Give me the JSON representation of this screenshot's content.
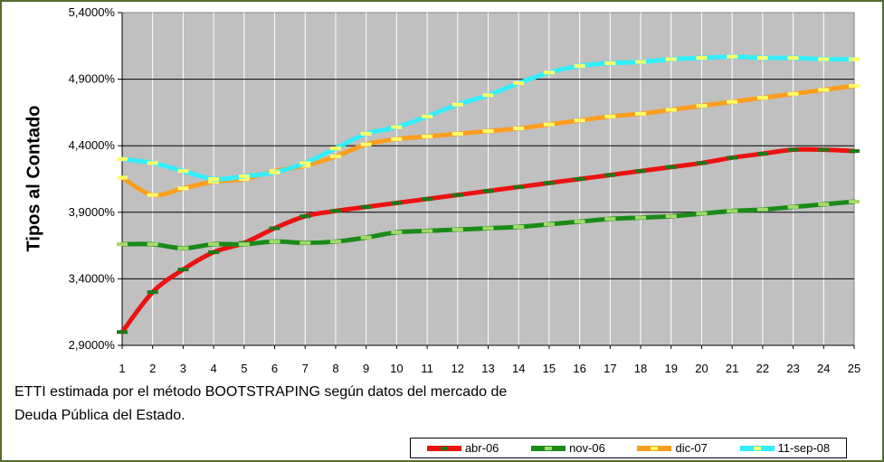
{
  "chart_data": {
    "type": "line",
    "ylabel": "Tipos al Contado",
    "xlabel": "",
    "x": [
      1,
      2,
      3,
      4,
      5,
      6,
      7,
      8,
      9,
      10,
      11,
      12,
      13,
      14,
      15,
      16,
      17,
      18,
      19,
      20,
      21,
      22,
      23,
      24,
      25
    ],
    "y_ticks": [
      "2,9000%",
      "3,4000%",
      "3,9000%",
      "4,4000%",
      "4,9000%",
      "5,4000%"
    ],
    "ylim": [
      2.9,
      5.4
    ],
    "grid": true,
    "legend_position": "bottom-right",
    "series": [
      {
        "name": "abr-06",
        "color": "#ee1111",
        "marker": "#1a7a1a",
        "values": [
          3.0,
          3.3,
          3.47,
          3.6,
          3.67,
          3.78,
          3.87,
          3.91,
          3.94,
          3.97,
          4.0,
          4.03,
          4.06,
          4.09,
          4.12,
          4.15,
          4.18,
          4.21,
          4.24,
          4.27,
          4.31,
          4.34,
          4.37,
          4.37,
          4.36
        ]
      },
      {
        "name": "nov-06",
        "color": "#1a8a1a",
        "marker": "#a6d86b",
        "values": [
          3.66,
          3.66,
          3.63,
          3.66,
          3.66,
          3.68,
          3.67,
          3.68,
          3.71,
          3.75,
          3.76,
          3.77,
          3.78,
          3.79,
          3.81,
          3.83,
          3.85,
          3.86,
          3.87,
          3.89,
          3.91,
          3.92,
          3.94,
          3.96,
          3.98
        ]
      },
      {
        "name": "dic-07",
        "color": "#ff9d1f",
        "marker": "#ffff66",
        "values": [
          4.16,
          4.03,
          4.08,
          4.13,
          4.15,
          4.21,
          4.25,
          4.32,
          4.41,
          4.45,
          4.47,
          4.49,
          4.51,
          4.53,
          4.56,
          4.59,
          4.62,
          4.64,
          4.67,
          4.7,
          4.73,
          4.76,
          4.79,
          4.82,
          4.85
        ]
      },
      {
        "name": "11-sep-08",
        "color": "#33eeff",
        "marker": "#ffff66",
        "values": [
          4.3,
          4.27,
          4.21,
          4.15,
          4.17,
          4.2,
          4.27,
          4.38,
          4.49,
          4.54,
          4.62,
          4.71,
          4.78,
          4.87,
          4.95,
          5.0,
          5.02,
          5.03,
          5.05,
          5.06,
          5.07,
          5.06,
          5.06,
          5.05,
          5.05
        ]
      }
    ]
  },
  "caption": {
    "line1": "ETTI estimada por el método BOOTSTRAPING según datos del mercado de",
    "line2": "Deuda Pública del Estado."
  }
}
